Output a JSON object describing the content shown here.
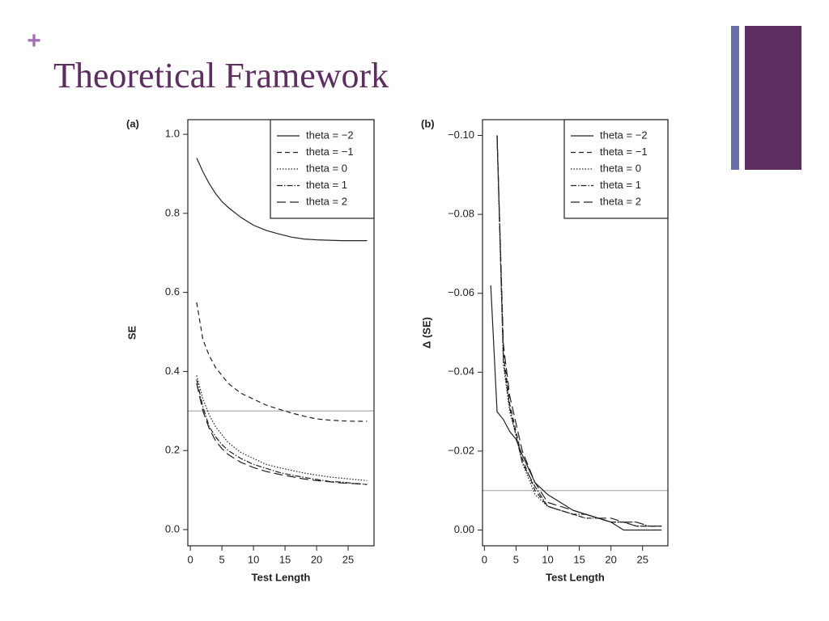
{
  "slide": {
    "marker": "+",
    "title": "Theoretical Framework"
  },
  "chart_data": [
    {
      "type": "line",
      "panel_label": "(a)",
      "x_label": "Test Length",
      "y_label": "SE",
      "x": [
        1,
        2,
        3,
        4,
        5,
        6,
        8,
        10,
        12,
        14,
        16,
        18,
        20,
        22,
        24,
        26,
        28
      ],
      "xlim": [
        -0.4,
        29.1
      ],
      "xticks": [
        0,
        5,
        10,
        15,
        20,
        25
      ],
      "ylim": [
        -0.041,
        1.037
      ],
      "yticks": [
        {
          "value": 0,
          "label": "0.0"
        },
        0.2,
        0.4,
        0.6,
        0.8,
        {
          "value": 1,
          "label": "1.0"
        }
      ],
      "reference_line": 0.3,
      "legend": "top-right",
      "series": [
        {
          "name": "theta = −2",
          "color": "#222222",
          "line_style": "solid",
          "values": [
            0.94,
            0.905,
            0.875,
            0.85,
            0.83,
            0.815,
            0.79,
            0.77,
            0.757,
            0.748,
            0.74,
            0.735,
            0.733,
            0.732,
            0.731,
            0.731,
            0.731
          ]
        },
        {
          "name": "theta = −1",
          "color": "#222222",
          "line_style": "dashed",
          "values": [
            0.575,
            0.48,
            0.44,
            0.41,
            0.39,
            0.37,
            0.345,
            0.33,
            0.315,
            0.305,
            0.295,
            0.287,
            0.28,
            0.277,
            0.275,
            0.274,
            0.274
          ]
        },
        {
          "name": "theta = 0",
          "color": "#222222",
          "line_style": "dotted",
          "values": [
            0.39,
            0.33,
            0.29,
            0.26,
            0.24,
            0.22,
            0.195,
            0.18,
            0.165,
            0.157,
            0.15,
            0.143,
            0.138,
            0.133,
            0.13,
            0.127,
            0.124
          ]
        },
        {
          "name": "theta = 1",
          "color": "#222222",
          "line_style": "dashdot",
          "values": [
            0.38,
            0.31,
            0.26,
            0.235,
            0.215,
            0.2,
            0.18,
            0.165,
            0.155,
            0.145,
            0.138,
            0.132,
            0.127,
            0.122,
            0.12,
            0.117,
            0.114
          ]
        },
        {
          "name": "theta = 2",
          "color": "#222222",
          "line_style": "longdash",
          "values": [
            0.37,
            0.3,
            0.255,
            0.225,
            0.205,
            0.19,
            0.17,
            0.157,
            0.147,
            0.14,
            0.134,
            0.128,
            0.124,
            0.121,
            0.118,
            0.116,
            0.114
          ]
        }
      ]
    },
    {
      "type": "line",
      "panel_label": "(b)",
      "x_label": "Test Length",
      "y_label": "Δ (SE)",
      "x": [
        1,
        2,
        3,
        4,
        5,
        6,
        8,
        10,
        12,
        14,
        16,
        18,
        20,
        22,
        24,
        26,
        28
      ],
      "xlim": [
        -0.3,
        29
      ],
      "xticks": [
        0,
        5,
        10,
        15,
        20,
        25
      ],
      "ylim": [
        0.004,
        -0.104
      ],
      "yticks": [
        {
          "value": 0,
          "label": "0.00"
        },
        {
          "value": -0.02,
          "label": "−0.02"
        },
        {
          "value": -0.04,
          "label": "−0.04"
        },
        {
          "value": -0.06,
          "label": "−0.06"
        },
        {
          "value": -0.08,
          "label": "−0.08"
        },
        {
          "value": -0.1,
          "label": "−0.10"
        }
      ],
      "reference_line": -0.01,
      "legend": "top-right",
      "series": [
        {
          "name": "theta = −2",
          "color": "#222222",
          "line_style": "solid",
          "values": [
            -0.062,
            -0.03,
            -0.028,
            -0.025,
            -0.023,
            -0.019,
            -0.012,
            -0.009,
            -0.007,
            -0.005,
            -0.004,
            -0.003,
            -0.002,
            0,
            0,
            0,
            0
          ]
        },
        {
          "name": "theta = −1",
          "color": "#222222",
          "line_style": "dashed",
          "values": [
            null,
            -0.1,
            -0.045,
            -0.032,
            -0.025,
            -0.018,
            -0.01,
            -0.006,
            -0.005,
            -0.004,
            -0.003,
            -0.003,
            -0.002,
            -0.002,
            -0.001,
            -0.001,
            -0.001
          ]
        },
        {
          "name": "theta = 0",
          "color": "#222222",
          "line_style": "dotted",
          "values": [
            null,
            -0.1,
            -0.042,
            -0.03,
            -0.024,
            -0.017,
            -0.009,
            -0.006,
            -0.005,
            -0.004,
            -0.003,
            -0.003,
            -0.002,
            -0.002,
            -0.002,
            -0.001,
            -0.001
          ]
        },
        {
          "name": "theta = 1",
          "color": "#222222",
          "line_style": "dashdot",
          "values": [
            null,
            -0.1,
            -0.043,
            -0.031,
            -0.024,
            -0.017,
            -0.011,
            -0.006,
            -0.005,
            -0.004,
            -0.004,
            -0.003,
            -0.002,
            -0.002,
            -0.001,
            -0.001,
            -0.001
          ]
        },
        {
          "name": "theta = 2",
          "color": "#222222",
          "line_style": "longdash",
          "values": [
            null,
            -0.1,
            -0.047,
            -0.034,
            -0.027,
            -0.02,
            -0.012,
            -0.007,
            -0.006,
            -0.005,
            -0.004,
            -0.003,
            -0.003,
            -0.002,
            -0.002,
            -0.001,
            -0.001
          ]
        }
      ]
    }
  ]
}
